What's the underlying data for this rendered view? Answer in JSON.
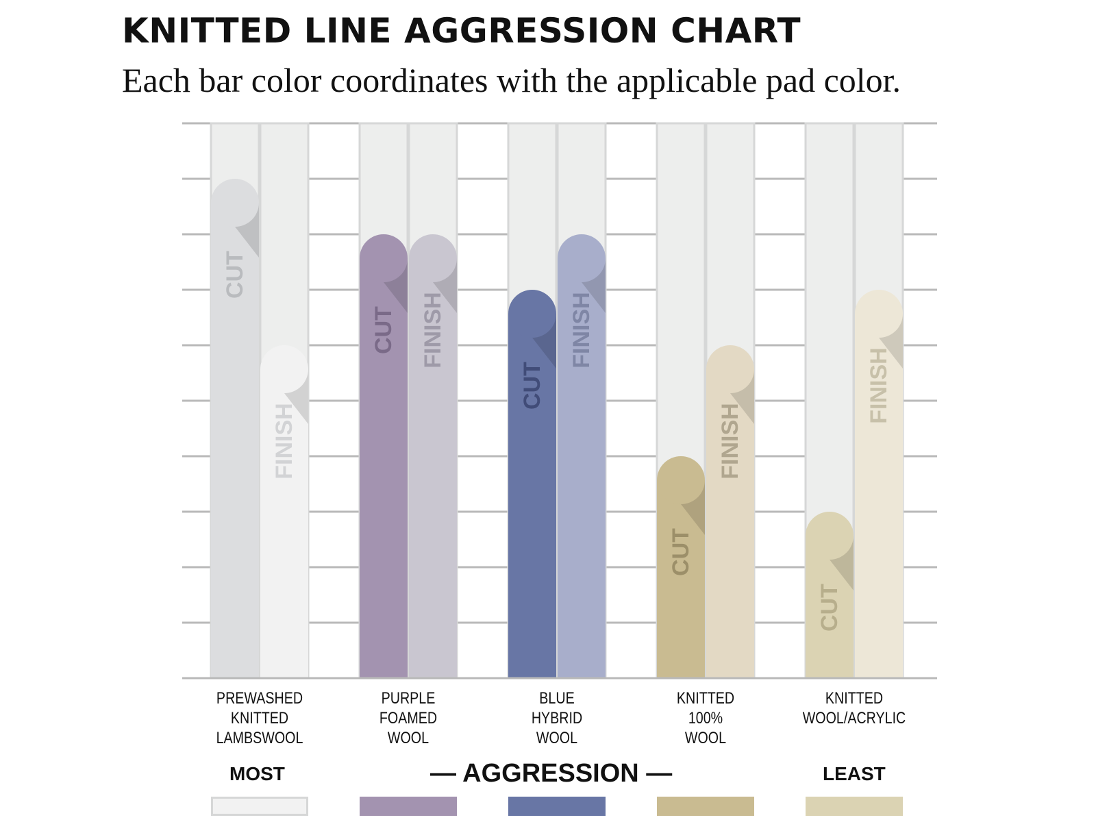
{
  "title": "KNITTED LINE AGGRESSION CHART",
  "subtitle": "Each bar color coordinates with the applicable pad color.",
  "colors": {
    "grid": "#b9b9b9",
    "track": "#edeeed",
    "track_border": "#d6d7d7"
  },
  "chart_data": {
    "type": "bar",
    "title": "KNITTED LINE AGGRESSION CHART",
    "subtitle": "Each bar color coordinates with the applicable pad color.",
    "xlabel": "— AGGRESSION —",
    "ylabel": "",
    "ylim": [
      0,
      10
    ],
    "grid": true,
    "categories": [
      "PREWASHED KNITTED LAMBSWOOL",
      "PURPLE FOAMED WOOL",
      "BLUE HYBRID WOOL",
      "KNITTED 100% WOOL",
      "KNITTED WOOL/ACRYLIC"
    ],
    "category_lines": [
      [
        "PREWASHED",
        "KNITTED",
        "LAMBSWOOL"
      ],
      [
        "PURPLE",
        "FOAMED",
        "WOOL"
      ],
      [
        "BLUE",
        "HYBRID",
        "WOOL"
      ],
      [
        "KNITTED",
        "100%",
        "WOOL"
      ],
      [
        "KNITTED",
        "WOOL/ACRYLIC"
      ]
    ],
    "series": [
      {
        "name": "CUT",
        "values": [
          9,
          8,
          7,
          4,
          3
        ]
      },
      {
        "name": "FINISH",
        "values": [
          6,
          8,
          8,
          6,
          7
        ]
      }
    ],
    "bar_colors": [
      {
        "cut": "#dcdddf",
        "finish": "#f2f2f2",
        "cut_text": "#b9bbbe",
        "finish_text": "#d2d3d5"
      },
      {
        "cut": "#a393b0",
        "finish": "#c9c6d0",
        "cut_text": "#7a6a88",
        "finish_text": "#9e9aa8"
      },
      {
        "cut": "#6876a5",
        "finish": "#a8aecb",
        "cut_text": "#414c78",
        "finish_text": "#7f86a5"
      },
      {
        "cut": "#c9bb91",
        "finish": "#e3d9c4",
        "cut_text": "#9c8f69",
        "finish_text": "#b0a68f"
      },
      {
        "cut": "#dbd3b3",
        "finish": "#ede7d7",
        "cut_text": "#b7ae8c",
        "finish_text": "#c7c0a9"
      }
    ],
    "legend": {
      "most": "MOST",
      "least": "LEAST",
      "axis": "— AGGRESSION —",
      "swatches": [
        "#f2f2f2",
        "#a393b0",
        "#6876a5",
        "#c9bb91",
        "#dbd3b3"
      ]
    }
  }
}
